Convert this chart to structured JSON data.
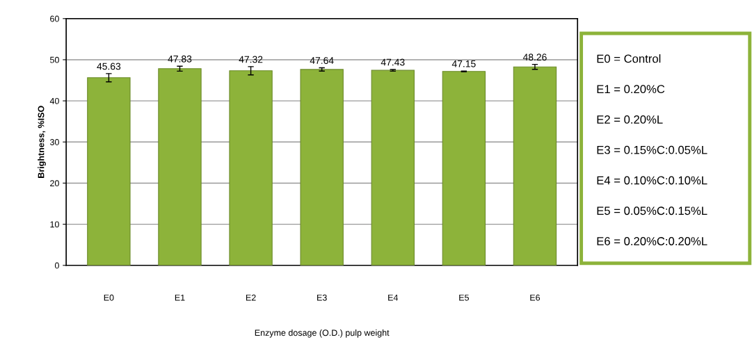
{
  "chart_data": {
    "type": "bar",
    "xlabel": "Enzyme dosage (O.D.) pulp weight",
    "ylabel": "Brightness, %ISO",
    "categories": [
      "E0",
      "E1",
      "E2",
      "E3",
      "E4",
      "E5",
      "E6"
    ],
    "values": [
      45.63,
      47.83,
      47.32,
      47.64,
      47.43,
      47.15,
      48.26
    ],
    "errors": [
      1.0,
      0.6,
      1.0,
      0.4,
      0.2,
      0.1,
      0.6
    ],
    "color": "#8db33a",
    "data_labels": true,
    "ylim": [
      0,
      60
    ],
    "yticks": [
      0,
      10,
      20,
      30,
      40,
      50,
      60
    ],
    "grid": "y",
    "annotations": [
      "E0 = Control",
      "E1 = 0.20%C",
      "E2 = 0.20%L",
      "E3 = 0.15%C:0.05%L",
      "E4 = 0.10%C:0.10%L",
      "E5 = 0.05%C:0.15%L",
      "E6 = 0.20%C:0.20%L"
    ]
  }
}
